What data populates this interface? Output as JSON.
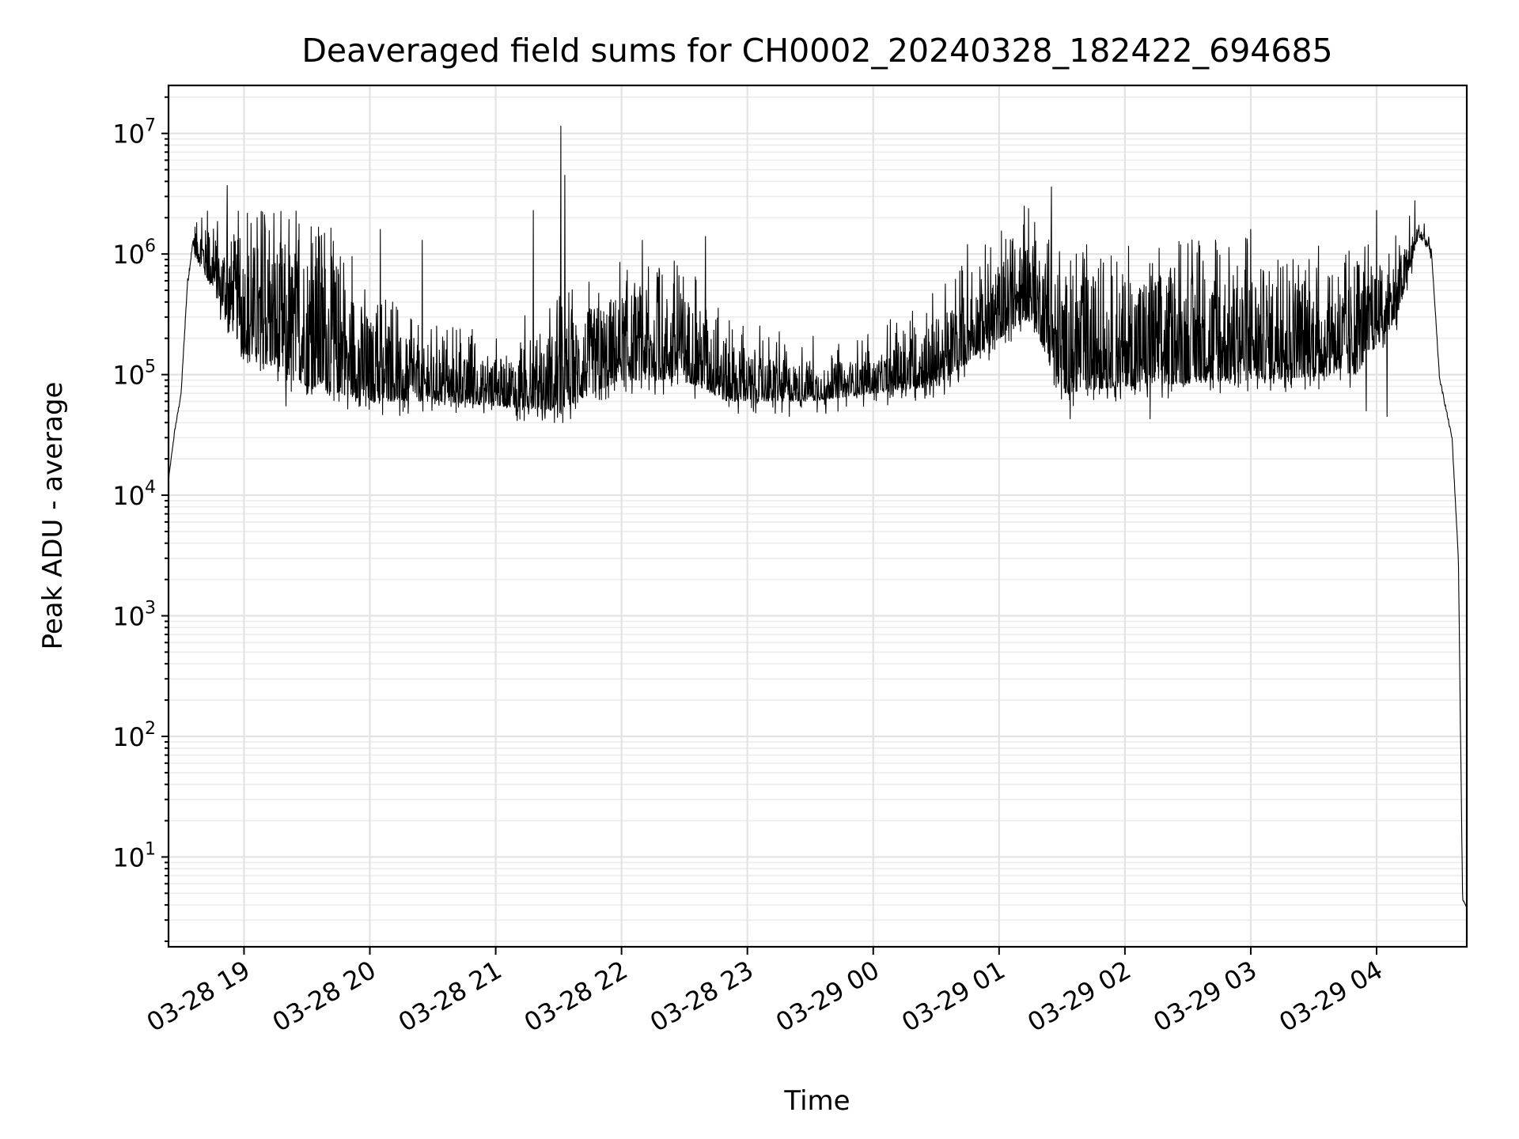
{
  "chart_data": {
    "type": "line",
    "title": "Deaveraged field sums for CH0002_20240328_182422_694685",
    "xlabel": "Time",
    "ylabel": "Peak ADU - average",
    "y_scale": "log",
    "grid": "major and minor on",
    "legend": "none",
    "line_color": "#000000",
    "xlim": [
      "2024-03-28 18:24",
      "2024-03-29 04:43"
    ],
    "ylim": [
      1.8,
      25000000
    ],
    "x_ticks": [
      {
        "label": "03-28 19",
        "t": "2024-03-28 19:00"
      },
      {
        "label": "03-28 20",
        "t": "2024-03-28 20:00"
      },
      {
        "label": "03-28 21",
        "t": "2024-03-28 21:00"
      },
      {
        "label": "03-28 22",
        "t": "2024-03-28 22:00"
      },
      {
        "label": "03-28 23",
        "t": "2024-03-28 23:00"
      },
      {
        "label": "03-29 00",
        "t": "2024-03-29 00:00"
      },
      {
        "label": "03-29 01",
        "t": "2024-03-29 01:00"
      },
      {
        "label": "03-29 02",
        "t": "2024-03-29 02:00"
      },
      {
        "label": "03-29 03",
        "t": "2024-03-29 03:00"
      },
      {
        "label": "03-29 04",
        "t": "2024-03-29 04:00"
      }
    ],
    "y_ticks": [
      {
        "base": "10",
        "exp": "1",
        "value": 10
      },
      {
        "base": "10",
        "exp": "2",
        "value": 100
      },
      {
        "base": "10",
        "exp": "3",
        "value": 1000
      },
      {
        "base": "10",
        "exp": "4",
        "value": 10000
      },
      {
        "base": "10",
        "exp": "5",
        "value": 100000
      },
      {
        "base": "10",
        "exp": "6",
        "value": 1000000
      },
      {
        "base": "10",
        "exp": "7",
        "value": 10000000
      }
    ],
    "series": [
      {
        "envelope": [
          {
            "t": "2024-03-28 18:24",
            "low": 12000,
            "high": 15000
          },
          {
            "t": "2024-03-28 18:27",
            "low": 30000,
            "high": 40000
          },
          {
            "t": "2024-03-28 18:30",
            "low": 60000,
            "high": 80000
          },
          {
            "t": "2024-03-28 18:33",
            "low": 400000,
            "high": 800000
          },
          {
            "t": "2024-03-28 18:36",
            "low": 1000000,
            "high": 1900000
          },
          {
            "t": "2024-03-28 18:45",
            "low": 500000,
            "high": 1500000
          },
          {
            "t": "2024-03-28 19:00",
            "low": 150000,
            "high": 1300000
          },
          {
            "t": "2024-03-28 19:30",
            "low": 80000,
            "high": 1300000
          },
          {
            "t": "2024-03-28 19:45",
            "low": 70000,
            "high": 900000
          },
          {
            "t": "2024-03-28 20:00",
            "low": 60000,
            "high": 300000
          },
          {
            "t": "2024-03-28 20:30",
            "low": 60000,
            "high": 150000
          },
          {
            "t": "2024-03-28 21:00",
            "low": 55000,
            "high": 130000
          },
          {
            "t": "2024-03-28 21:30",
            "low": 50000,
            "high": 250000
          },
          {
            "t": "2024-03-28 21:50",
            "low": 75000,
            "high": 400000
          },
          {
            "t": "2024-03-28 22:00",
            "low": 90000,
            "high": 500000
          },
          {
            "t": "2024-03-28 22:30",
            "low": 90000,
            "high": 500000
          },
          {
            "t": "2024-03-28 22:50",
            "low": 60000,
            "high": 200000
          },
          {
            "t": "2024-03-28 23:00",
            "low": 60000,
            "high": 150000
          },
          {
            "t": "2024-03-28 23:30",
            "low": 60000,
            "high": 120000
          },
          {
            "t": "2024-03-29 00:00",
            "low": 70000,
            "high": 130000
          },
          {
            "t": "2024-03-29 00:30",
            "low": 80000,
            "high": 300000
          },
          {
            "t": "2024-03-29 00:50",
            "low": 150000,
            "high": 600000
          },
          {
            "t": "2024-03-29 01:15",
            "low": 300000,
            "high": 1500000
          },
          {
            "t": "2024-03-29 01:30",
            "low": 70000,
            "high": 700000
          },
          {
            "t": "2024-03-29 02:00",
            "low": 80000,
            "high": 700000
          },
          {
            "t": "2024-03-29 03:00",
            "low": 90000,
            "high": 800000
          },
          {
            "t": "2024-03-29 03:50",
            "low": 100000,
            "high": 600000
          },
          {
            "t": "2024-03-29 04:10",
            "low": 300000,
            "high": 900000
          },
          {
            "t": "2024-03-29 04:20",
            "low": 1400000,
            "high": 1800000
          },
          {
            "t": "2024-03-29 04:26",
            "low": 1000000,
            "high": 1300000
          },
          {
            "t": "2024-03-29 04:30",
            "low": 80000,
            "high": 110000
          },
          {
            "t": "2024-03-29 04:36",
            "low": 25000,
            "high": 35000
          },
          {
            "t": "2024-03-29 04:39",
            "low": 2500,
            "high": 3500
          },
          {
            "t": "2024-03-29 04:41",
            "low": 4,
            "high": 5
          },
          {
            "t": "2024-03-29 04:43",
            "low": 3.8,
            "high": 3.8
          }
        ],
        "peaks": [
          {
            "t": "2024-03-28 18:43",
            "value": 1500000
          },
          {
            "t": "2024-03-28 18:52",
            "value": 3700000
          },
          {
            "t": "2024-03-28 19:36",
            "value": 1400000
          },
          {
            "t": "2024-03-28 20:05",
            "value": 1600000
          },
          {
            "t": "2024-03-28 20:25",
            "value": 1300000
          },
          {
            "t": "2024-03-28 21:18",
            "value": 2300000
          },
          {
            "t": "2024-03-28 21:31",
            "value": 11500000
          },
          {
            "t": "2024-03-28 21:33",
            "value": 4500000
          },
          {
            "t": "2024-03-28 22:10",
            "value": 1300000
          },
          {
            "t": "2024-03-28 22:40",
            "value": 1400000
          },
          {
            "t": "2024-03-29 00:45",
            "value": 1200000
          },
          {
            "t": "2024-03-29 01:12",
            "value": 2500000
          },
          {
            "t": "2024-03-29 01:25",
            "value": 3600000
          },
          {
            "t": "2024-03-29 03:00",
            "value": 1600000
          },
          {
            "t": "2024-03-29 04:00",
            "value": 2300000
          },
          {
            "t": "2024-03-29 04:06",
            "value": 1000000
          }
        ],
        "dips": [
          {
            "t": "2024-03-28 19:20",
            "value": 55000
          },
          {
            "t": "2024-03-28 21:20",
            "value": 45000
          },
          {
            "t": "2024-03-28 21:28",
            "value": 40000
          },
          {
            "t": "2024-03-28 23:20",
            "value": 45000
          },
          {
            "t": "2024-03-29 01:34",
            "value": 43000
          },
          {
            "t": "2024-03-29 02:12",
            "value": 43000
          },
          {
            "t": "2024-03-29 03:55",
            "value": 50000
          },
          {
            "t": "2024-03-29 04:05",
            "value": 45000
          }
        ]
      }
    ]
  }
}
